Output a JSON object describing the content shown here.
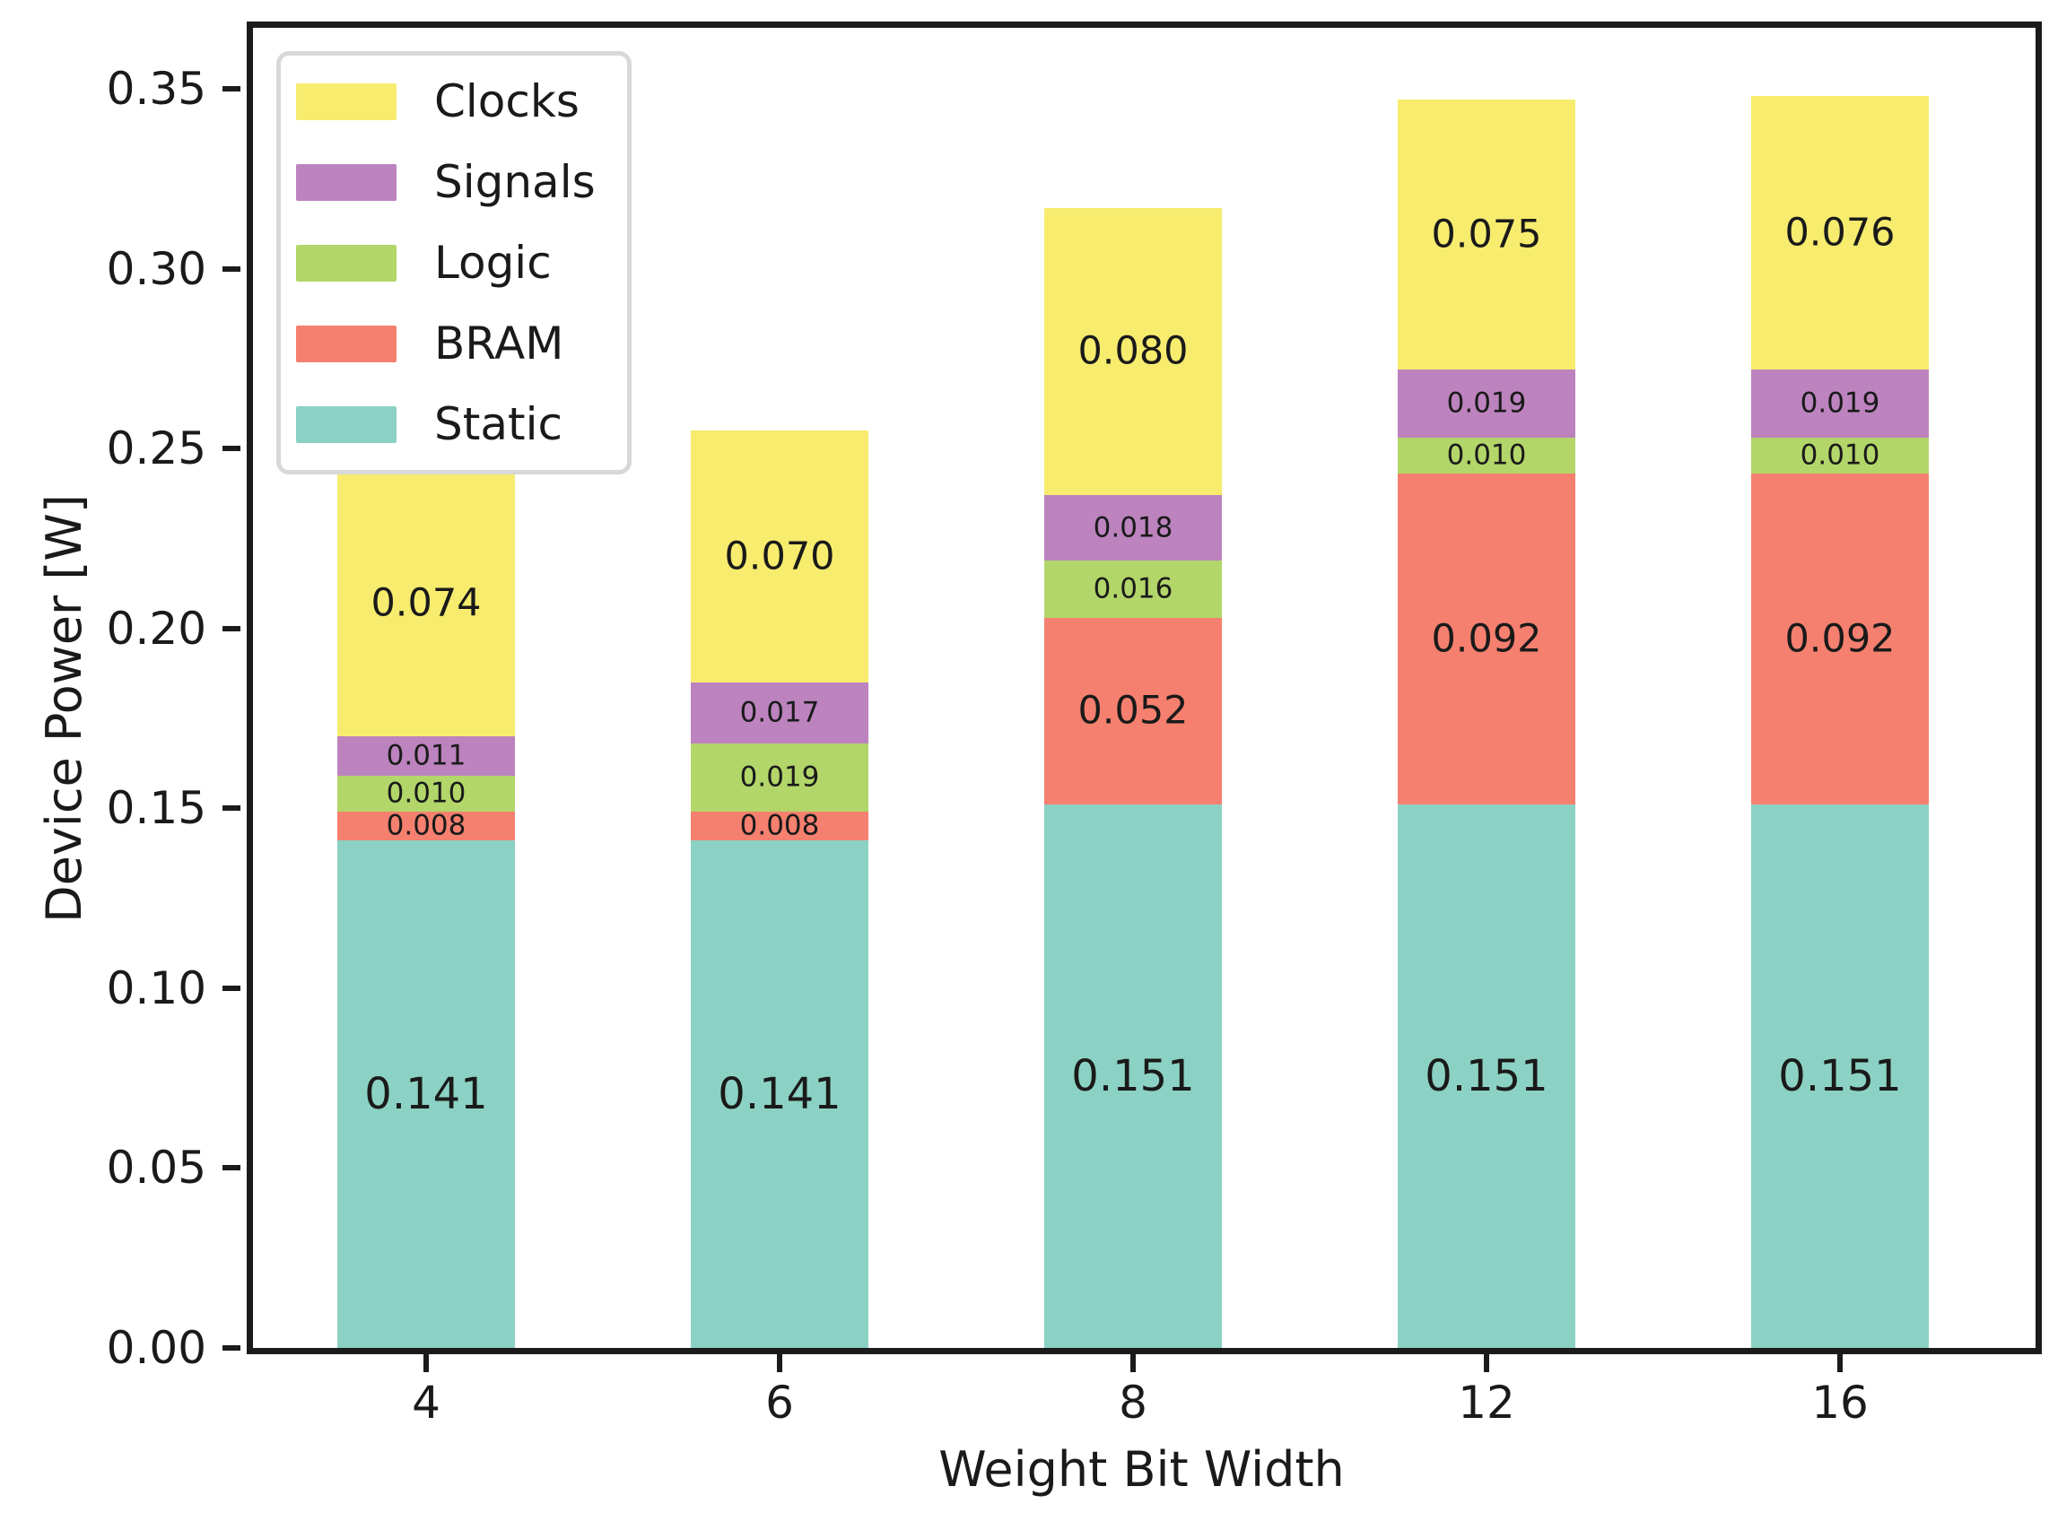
{
  "chart_data": {
    "type": "bar",
    "stacked": true,
    "title": "",
    "xlabel": "Weight Bit Width",
    "ylabel": "Device Power [W]",
    "categories": [
      "4",
      "6",
      "8",
      "12",
      "16"
    ],
    "series": [
      {
        "name": "Static",
        "color": "#8CD2C4",
        "values": [
          0.141,
          0.141,
          0.151,
          0.151,
          0.151
        ]
      },
      {
        "name": "BRAM",
        "color": "#F5806F",
        "values": [
          0.008,
          0.008,
          0.052,
          0.092,
          0.092
        ]
      },
      {
        "name": "Logic",
        "color": "#B2D669",
        "values": [
          0.01,
          0.019,
          0.016,
          0.01,
          0.01
        ]
      },
      {
        "name": "Signals",
        "color": "#BC83BE",
        "values": [
          0.011,
          0.017,
          0.018,
          0.019,
          0.019
        ]
      },
      {
        "name": "Clocks",
        "color": "#F7EC6E",
        "values": [
          0.074,
          0.07,
          0.08,
          0.075,
          0.076
        ]
      }
    ],
    "segment_labels": [
      [
        "0.141",
        "0.141",
        "0.151",
        "0.151",
        "0.151"
      ],
      [
        "0.008",
        "0.008",
        "0.052",
        "0.092",
        "0.092"
      ],
      [
        "0.010",
        "0.019",
        "0.016",
        "0.010",
        "0.010"
      ],
      [
        "0.011",
        "0.017",
        "0.018",
        "0.019",
        "0.019"
      ],
      [
        "0.074",
        "0.070",
        "0.080",
        "0.075",
        "0.076"
      ]
    ],
    "ylim": [
      0,
      0.367
    ],
    "yticks": [
      "0.00",
      "0.05",
      "0.10",
      "0.15",
      "0.20",
      "0.25",
      "0.30",
      "0.35"
    ],
    "grid": false,
    "legend": {
      "position": "upper left",
      "order": [
        "Clocks",
        "Signals",
        "Logic",
        "BRAM",
        "Static"
      ]
    },
    "text_color": "#1a1a1a",
    "spine_color": "#1b1b1b"
  }
}
